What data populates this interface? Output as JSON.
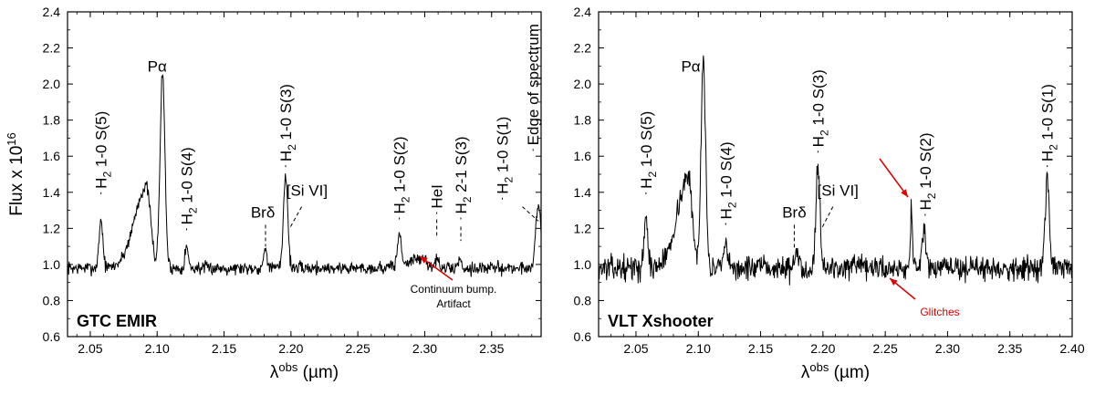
{
  "chart_data": [
    {
      "type": "line",
      "panel_label": "GTC EMIR",
      "xlabel": "λobs (µm)",
      "ylabel": "Flux x 1016",
      "xlim": [
        2.033,
        2.387
      ],
      "ylim": [
        0.6,
        2.4
      ],
      "xticks": [
        "2.05",
        "2.10",
        "2.15",
        "2.20",
        "2.25",
        "2.30",
        "2.35"
      ],
      "yticks": [
        "0.6",
        "0.8",
        "1.0",
        "1.2",
        "1.4",
        "1.6",
        "1.8",
        "2.0",
        "2.2",
        "2.4"
      ],
      "spectrum": {
        "baseline": 0.98,
        "noise": 0.03,
        "seed": 7,
        "lines": [
          {
            "x": 2.058,
            "height": 0.27,
            "width": 0.0014
          },
          {
            "x": 2.104,
            "height": 1.08,
            "width": 0.0018
          },
          {
            "x": 2.122,
            "height": 0.12,
            "width": 0.0012
          },
          {
            "x": 2.181,
            "height": 0.12,
            "width": 0.0012
          },
          {
            "x": 2.196,
            "height": 0.52,
            "width": 0.0016
          },
          {
            "x": 2.281,
            "height": 0.17,
            "width": 0.0014
          },
          {
            "x": 2.309,
            "height": 0.05,
            "width": 0.0012
          },
          {
            "x": 2.326,
            "height": 0.05,
            "width": 0.0012
          },
          {
            "x": 2.385,
            "height": 0.35,
            "width": 0.002
          }
        ],
        "bumps": [
          {
            "x": 2.092,
            "height": 0.45,
            "width": 0.009
          },
          {
            "x": 2.298,
            "height": 0.05,
            "width": 0.012
          }
        ]
      },
      "annotations": [
        {
          "label": "H2 1-0 S(5)",
          "x": 2.058,
          "y_start": 1.42,
          "vertical": true
        },
        {
          "label": "Pα",
          "x": 2.1,
          "y_start": 2.07,
          "vertical": false
        },
        {
          "label": "H2 1-0 S(4)",
          "x": 2.122,
          "y_start": 1.22,
          "vertical": true
        },
        {
          "label": "Brδ",
          "x": 2.179,
          "y_start": 1.26,
          "vertical": false
        },
        {
          "label": "H2 1-0 S(3)",
          "x": 2.196,
          "y_start": 1.57,
          "vertical": true
        },
        {
          "label": "[Si VI]",
          "x": 2.212,
          "y_start": 1.38,
          "vertical": false
        },
        {
          "label": "H2 1-0 S(2)",
          "x": 2.281,
          "y_start": 1.28,
          "vertical": true
        },
        {
          "label": "HeI",
          "x": 2.309,
          "y_start": 1.31,
          "vertical": true
        },
        {
          "label": "H2 2-1 S(3)",
          "x": 2.327,
          "y_start": 1.28,
          "vertical": true
        },
        {
          "label": "H2 1-0 S(1)",
          "x": 2.358,
          "y_start": 1.39,
          "vertical": true
        },
        {
          "label": "Edge of spectrum",
          "x": 2.381,
          "y_start": 1.66,
          "vertical": true
        }
      ],
      "note": {
        "lines": [
          "Continuum bump.",
          "Artifact"
        ],
        "color": "#e00000"
      }
    },
    {
      "type": "line",
      "panel_label": "VLT Xshooter",
      "xlabel": "λobs (µm)",
      "xlim": [
        2.02,
        2.4
      ],
      "ylim": [
        0.6,
        2.4
      ],
      "xticks": [
        "2.05",
        "2.10",
        "2.15",
        "2.20",
        "2.25",
        "2.30",
        "2.35",
        "2.40"
      ],
      "yticks": [
        "0.6",
        "0.8",
        "1.0",
        "1.2",
        "1.4",
        "1.6",
        "1.8",
        "2.0",
        "2.2",
        "2.4"
      ],
      "spectrum": {
        "baseline": 0.98,
        "noise": 0.055,
        "seed": 13,
        "lines": [
          {
            "x": 2.058,
            "height": 0.3,
            "width": 0.0014
          },
          {
            "x": 2.104,
            "height": 1.18,
            "width": 0.0018
          },
          {
            "x": 2.122,
            "height": 0.14,
            "width": 0.0012
          },
          {
            "x": 2.179,
            "height": 0.1,
            "width": 0.0012
          },
          {
            "x": 2.196,
            "height": 0.58,
            "width": 0.0016
          },
          {
            "x": 2.271,
            "height": 0.35,
            "width": 0.0008
          },
          {
            "x": 2.281,
            "height": 0.2,
            "width": 0.0014
          },
          {
            "x": 2.38,
            "height": 0.5,
            "width": 0.0016
          }
        ],
        "bumps": [
          {
            "x": 2.092,
            "height": 0.5,
            "width": 0.009
          }
        ]
      },
      "annotations": [
        {
          "label": "H2 1-0 S(5)",
          "x": 2.058,
          "y_start": 1.42,
          "vertical": true
        },
        {
          "label": "Pα",
          "x": 2.094,
          "y_start": 2.07,
          "vertical": false
        },
        {
          "label": "H2 1-0 S(4)",
          "x": 2.122,
          "y_start": 1.25,
          "vertical": true
        },
        {
          "label": "Brδ",
          "x": 2.177,
          "y_start": 1.26,
          "vertical": false
        },
        {
          "label": "H2 1-0 S(3)",
          "x": 2.196,
          "y_start": 1.65,
          "vertical": true
        },
        {
          "label": "[Si VI]",
          "x": 2.212,
          "y_start": 1.38,
          "vertical": false
        },
        {
          "label": "H2 1-0 S(2)",
          "x": 2.282,
          "y_start": 1.3,
          "vertical": true
        },
        {
          "label": "H2 1-0 S(1)",
          "x": 2.38,
          "y_start": 1.57,
          "vertical": true
        }
      ],
      "note": {
        "lines": [
          "Glitches"
        ],
        "color": "#e00000"
      }
    }
  ]
}
